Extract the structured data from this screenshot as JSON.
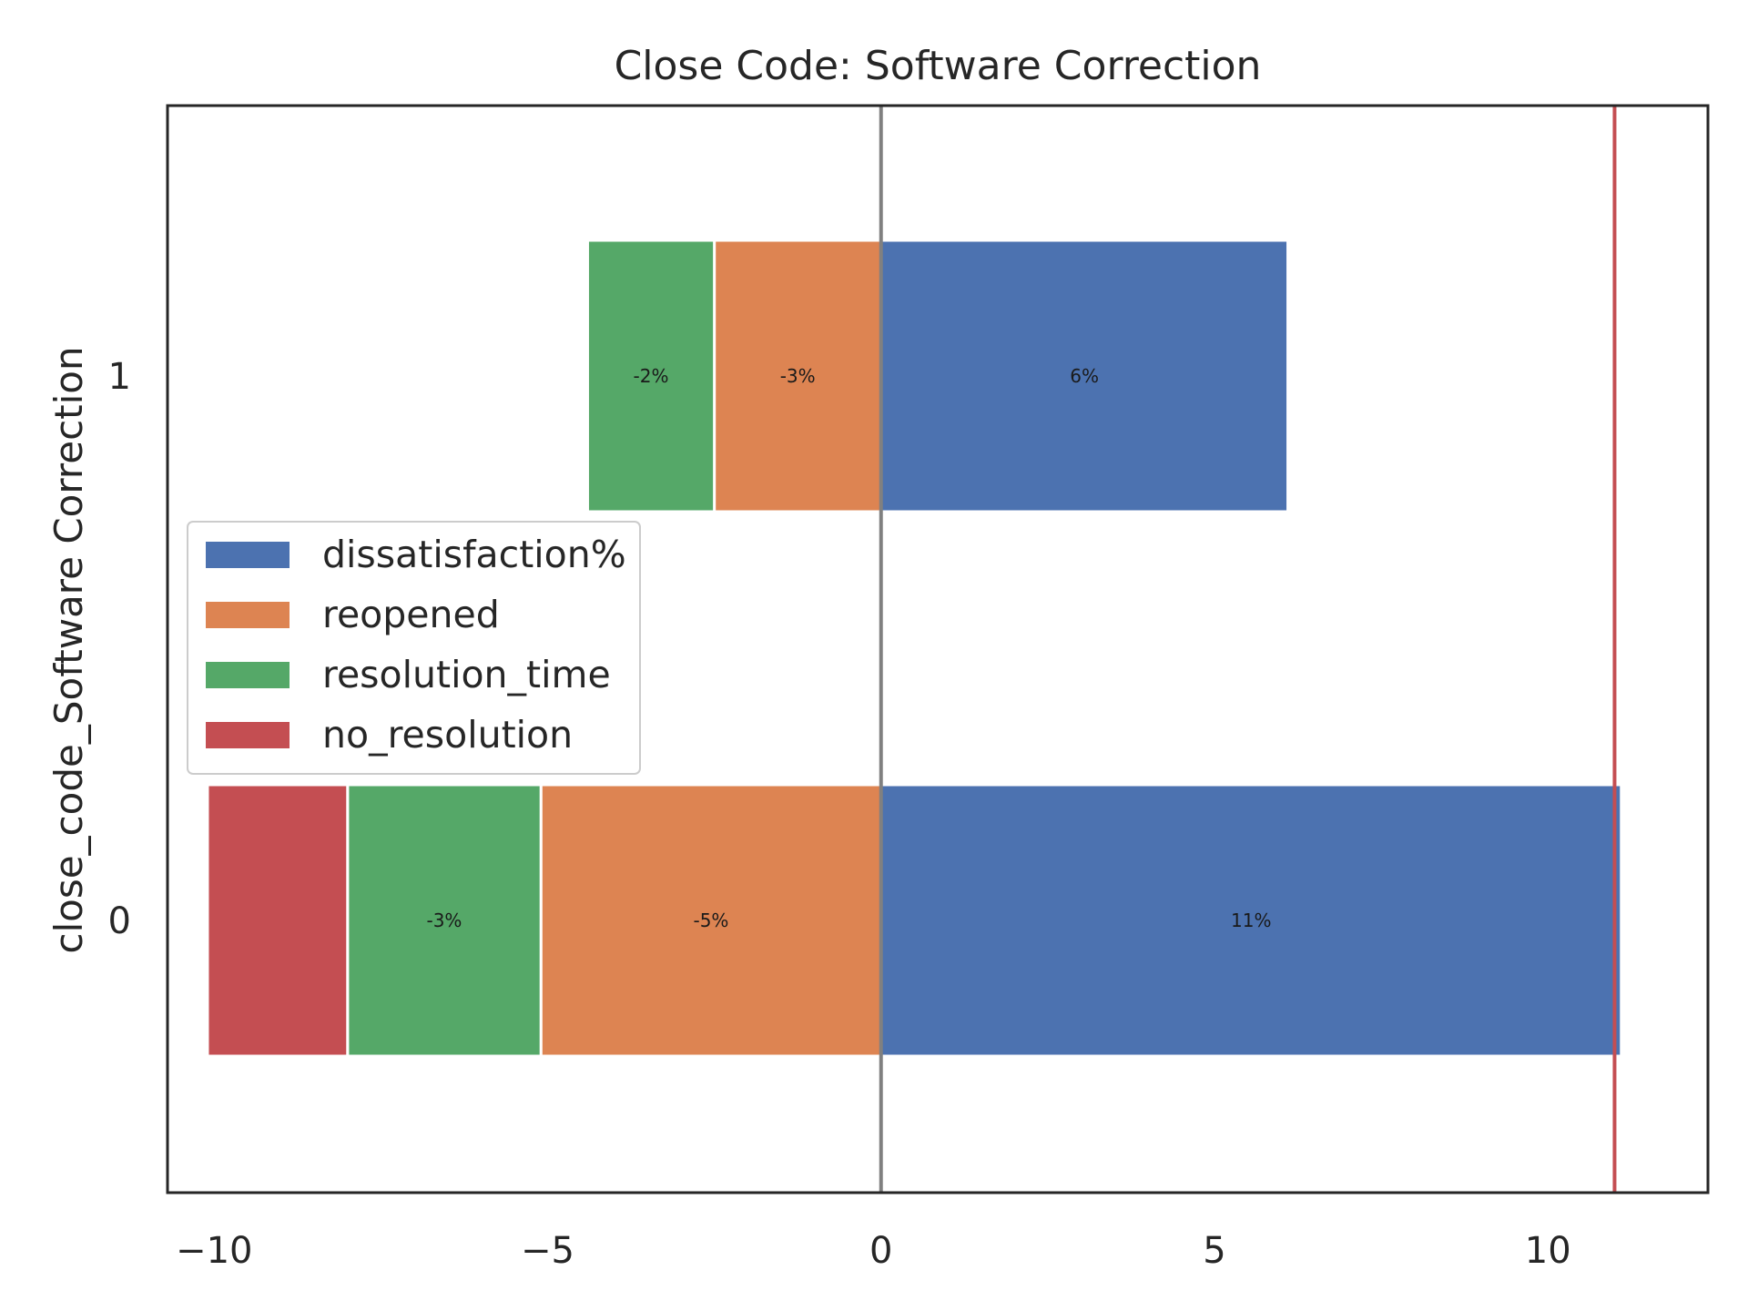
{
  "chart_data": {
    "type": "bar",
    "orientation": "horizontal",
    "stacked": "diverging",
    "title": "Close Code: Software Correction",
    "xlabel": "",
    "ylabel": "close_code_Software Correction",
    "xlim": [
      -10.7,
      12.4
    ],
    "xticks": [
      -10,
      -5,
      0,
      5,
      10
    ],
    "xtick_labels": [
      "−10",
      "−5",
      "0",
      "5",
      "10"
    ],
    "categories": [
      "1",
      "0"
    ],
    "zero_line_color": "#808080",
    "reference_line": {
      "x": 11,
      "color": "#c44e52"
    },
    "legend_position": "center-left",
    "series": [
      {
        "name": "dissatisfaction%",
        "color": "#4c72b0",
        "values": [
          6.1,
          11.1
        ],
        "labels": [
          "6%",
          "11%"
        ]
      },
      {
        "name": "reopened",
        "color": "#dd8452",
        "values": [
          -2.5,
          -5.1
        ],
        "labels": [
          "-3%",
          "-5%"
        ]
      },
      {
        "name": "resolution_time",
        "color": "#55a868",
        "values": [
          -1.9,
          -2.9
        ],
        "labels": [
          "-2%",
          "-3%"
        ]
      },
      {
        "name": "no_resolution",
        "color": "#c44e52",
        "values": [
          0,
          -2.1
        ],
        "labels": [
          "",
          ""
        ]
      }
    ],
    "grid": false
  }
}
